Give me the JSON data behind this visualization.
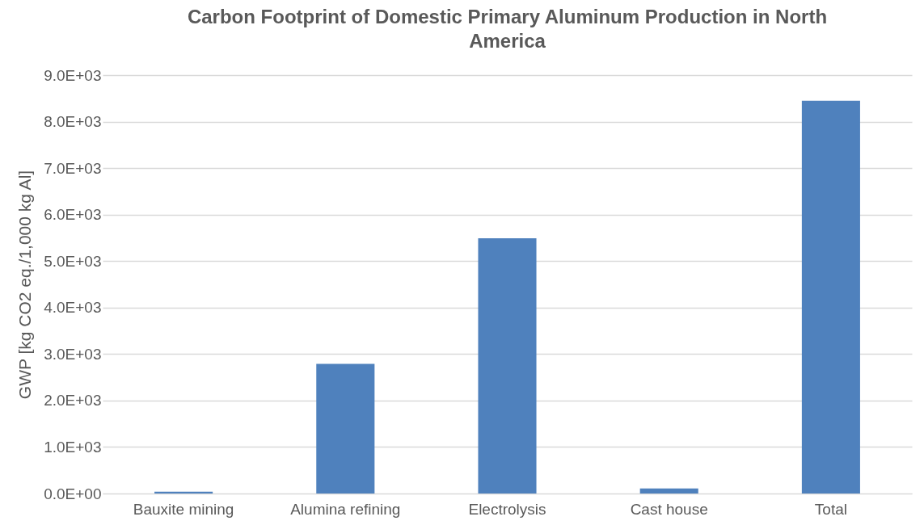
{
  "chart_data": {
    "type": "bar",
    "title": "Carbon Footprint of Domestic Primary Aluminum Production in North America",
    "ylabel": "GWP [kg CO2 eq./1,000 kg Al]",
    "categories": [
      "Bauxite mining",
      "Alumina refining",
      "Electrolysis",
      "Cast house",
      "Total"
    ],
    "values": [
      40,
      2790,
      5490,
      110,
      8450
    ],
    "color": "#4f81bd",
    "ylim": [
      0,
      9000
    ],
    "yticks": [
      {
        "value": 0,
        "label": "0.0E+00"
      },
      {
        "value": 1000,
        "label": "1.0E+03"
      },
      {
        "value": 2000,
        "label": "2.0E+03"
      },
      {
        "value": 3000,
        "label": "3.0E+03"
      },
      {
        "value": 4000,
        "label": "4.0E+03"
      },
      {
        "value": 5000,
        "label": "5.0E+03"
      },
      {
        "value": 6000,
        "label": "6.0E+03"
      },
      {
        "value": 7000,
        "label": "7.0E+03"
      },
      {
        "value": 8000,
        "label": "8.0E+03"
      },
      {
        "value": 9000,
        "label": "9.0E+03"
      }
    ],
    "grid": "y"
  }
}
